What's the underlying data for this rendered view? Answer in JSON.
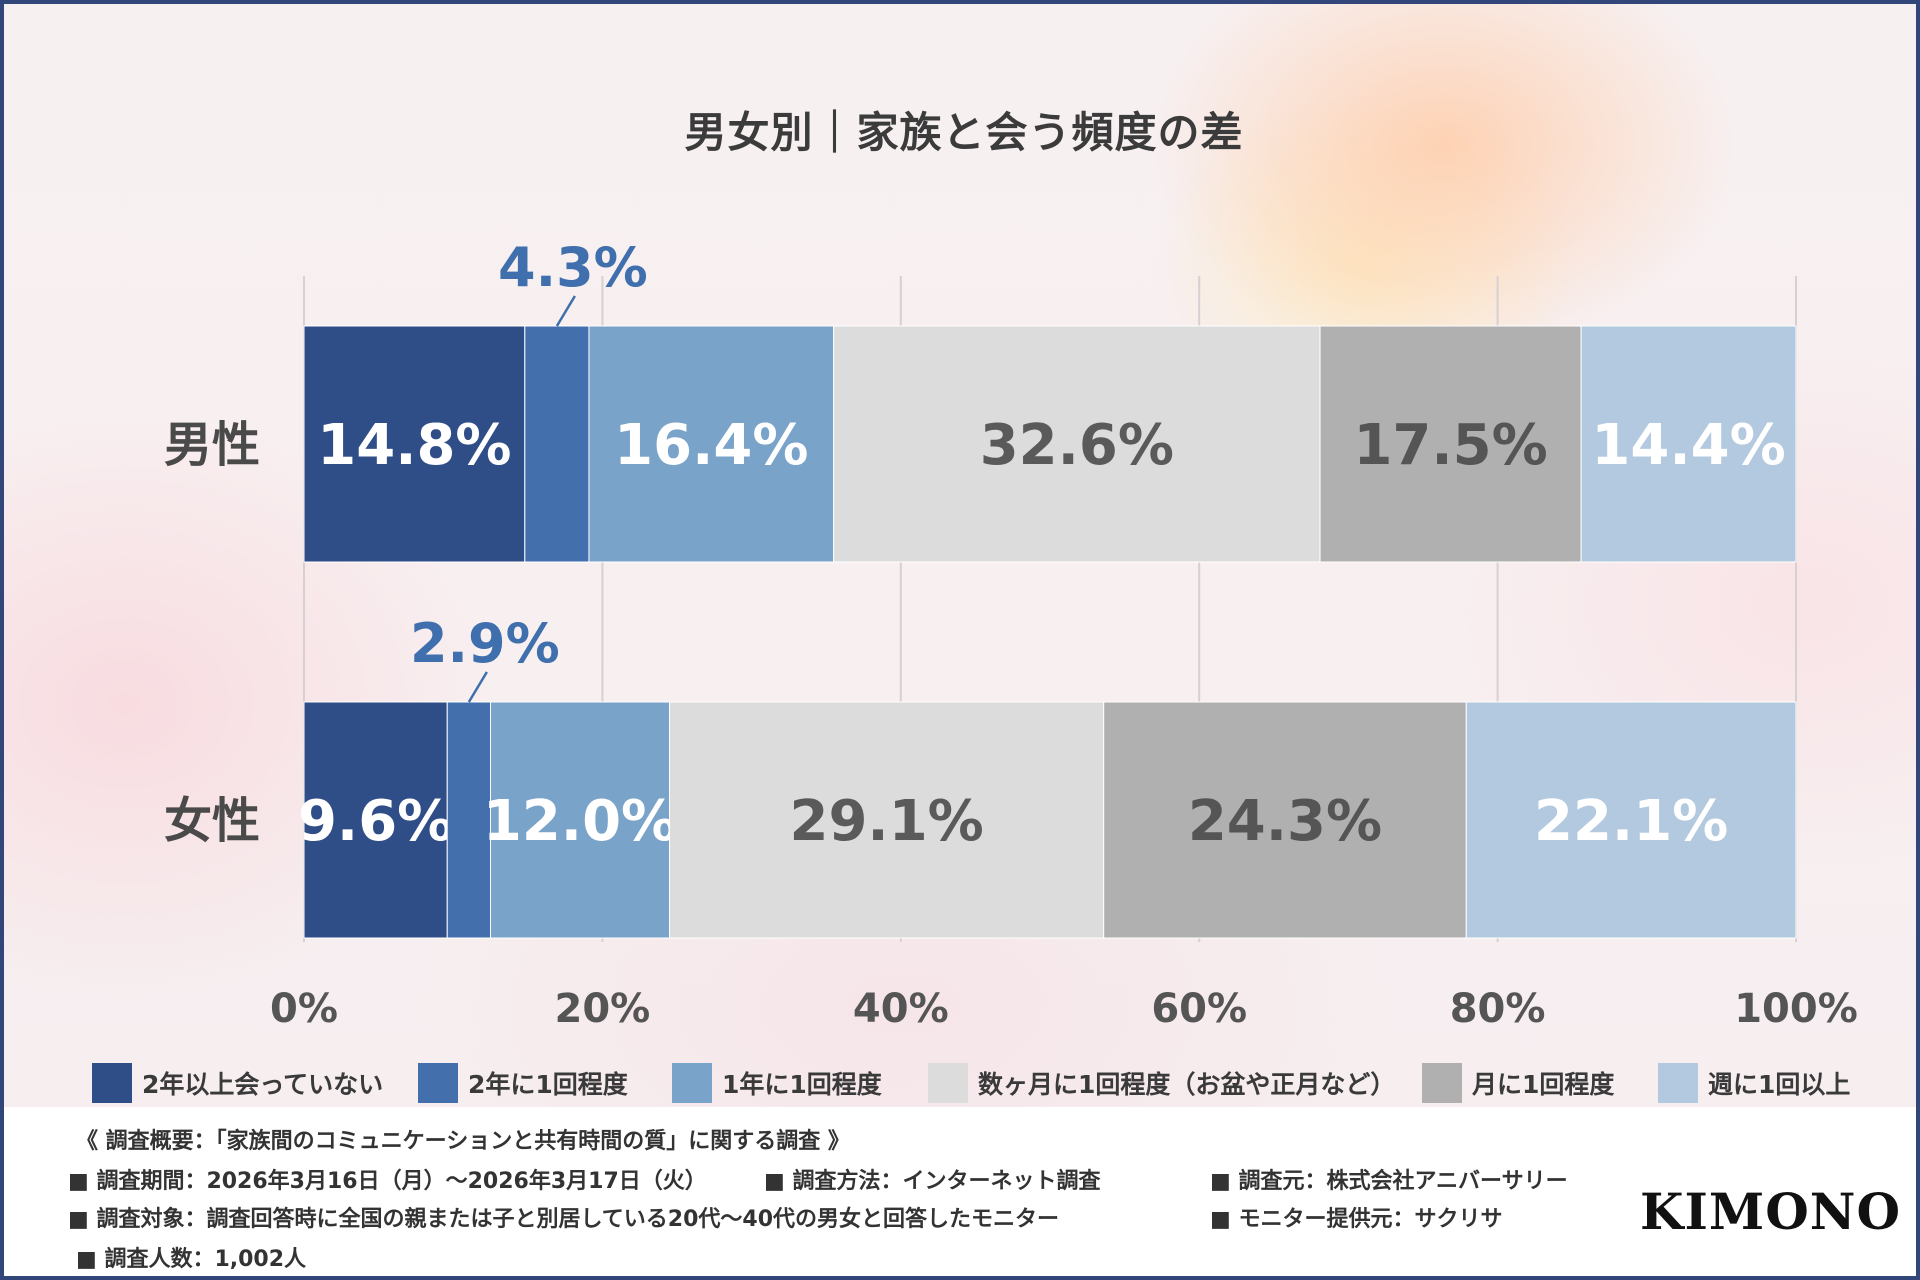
{
  "title": "男女別｜家族と会う頻度の差",
  "chart_data": {
    "type": "bar",
    "orientation": "horizontal-stacked-100",
    "title": "男女別｜家族と会う頻度の差",
    "categories": [
      "男性",
      "女性"
    ],
    "xlim": [
      0,
      100
    ],
    "xticks": [
      "0%",
      "20%",
      "40%",
      "60%",
      "80%",
      "100%"
    ],
    "series": [
      {
        "name": "2年以上会っていない",
        "color": "#2f4d87",
        "label_color": "#ffffff",
        "values": [
          14.8,
          9.6
        ],
        "labels": [
          "14.8%",
          "9.6%"
        ]
      },
      {
        "name": "2年に1回程度",
        "color": "#4370ad",
        "label_color": "#3f6fac",
        "values": [
          4.3,
          2.9
        ],
        "labels": [
          "4.3%",
          "2.9%"
        ],
        "callout": true
      },
      {
        "name": "1年に1回程度",
        "color": "#7aa3c9",
        "label_color": "#ffffff",
        "values": [
          16.4,
          12.0
        ],
        "labels": [
          "16.4%",
          "12.0%"
        ]
      },
      {
        "name": "数ヶ月に1回程度（お盆や正月など）",
        "color": "#dcdcdc",
        "label_color": "#5a5a5a",
        "values": [
          32.6,
          29.1
        ],
        "labels": [
          "32.6%",
          "29.1%"
        ]
      },
      {
        "name": "月に1回程度",
        "color": "#b0b0b0",
        "label_color": "#555555",
        "values": [
          17.5,
          24.3
        ],
        "labels": [
          "17.5%",
          "24.3%"
        ]
      },
      {
        "name": "週に1回以上",
        "color": "#b3c9df",
        "label_color": "#ffffff",
        "values": [
          14.4,
          22.1
        ],
        "labels": [
          "14.4%",
          "22.1%"
        ]
      }
    ]
  },
  "footer": {
    "heading": "《 調査概要：「家族間のコミュニケーションと共有時間の質」に関する調査 》",
    "period": "■ 調査期間：2026年3月16日（月）～2026年3月17日（火）",
    "method": "■ 調査方法：インターネット調査",
    "organizer": "■ 調査元：株式会社アニバーサリー",
    "target": "■ 調査対象：調査回答時に全国の親または子と別居している20代～40代の男女と回答したモニター",
    "provider": "■ モニター提供元：サクリサ",
    "count": "■ 調査人数：1,002人"
  },
  "logo": {
    "text": "KIMONO ",
    "amp": "&"
  }
}
